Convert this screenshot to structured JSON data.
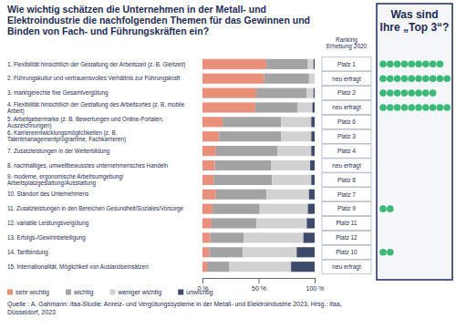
{
  "chart_data": {
    "type": "bar",
    "orientation": "horizontal",
    "stacked": true,
    "legend": "bottom",
    "grid": false,
    "title": "Wie wichtig schätzen die Unternehmen in der Metall- und Elektroindustrie die nachfolgenden Themen für das Gewinnen und Binden von Fach- und Führungskräften ein?",
    "categories": [
      "1. Flexibilität hinsichtlich der Gestaltung der Arbeitszeit (z. B. Gleitzeit)",
      "2. Führungskultur und vertrauensvolles Verhältnis zur Führungskraft",
      "3. marktgerechte fixe Gesamtvergütung",
      "4. Flexibilität hinsichtlich der Gestaltung des Arbeitsortes (z. B. mobile Arbeit)",
      "5. Arbeitgebermarke (z. B. Bewertungen und Online-Portalen, Auszeichnungen)",
      "6. Karriereentwicklungsmöglichkeiten (z. B. Talentmanagementprogramme, Fachkarrieren)",
      "7. Zusatzleistungen in der Weiterbildung",
      "8. nachhaltiges, umweltbewusstes unternehmerisches Handeln",
      "9. moderne, ergonomische Arbeitsumgebung/ Arbeitsplatzgestaltung/Ausstattung",
      "10. Standort des Unternehmens",
      "11. Zusatzleistungen in den Bereichen Gesundheit/Soziales/Vorsorge",
      "12. variable Leistungsvergütung",
      "13. Erfolgs-/Gewinnbeteiligung",
      "14. Tarifbindung",
      "15. Internationalität, Möglichkeit von Auslandseinsätzen"
    ],
    "series": [
      {
        "name": "sehr wichtig",
        "color": "#e8907a",
        "values": [
          57,
          55,
          48,
          47,
          18,
          15,
          12,
          11,
          10,
          12,
          9,
          8,
          7,
          6,
          4
        ]
      },
      {
        "name": "wichtig",
        "color": "#a3a3a3",
        "values": [
          37,
          40,
          45,
          38,
          52,
          55,
          55,
          50,
          52,
          45,
          42,
          40,
          30,
          30,
          20
        ]
      },
      {
        "name": "weniger wichtig",
        "color": "#d2d2d2",
        "values": [
          5,
          5,
          6,
          13,
          27,
          27,
          30,
          35,
          35,
          38,
          43,
          45,
          53,
          48,
          55
        ]
      },
      {
        "name": "unwichtig",
        "color": "#3d4a6b",
        "values": [
          1,
          0,
          1,
          2,
          3,
          3,
          3,
          4,
          3,
          5,
          6,
          7,
          10,
          16,
          21
        ]
      }
    ],
    "xlim": [
      0,
      100
    ],
    "xticks": [
      {
        "value": 0,
        "label": "0 %"
      },
      {
        "value": 50,
        "label": "50 %"
      },
      {
        "value": 100,
        "label": "100 %"
      }
    ],
    "ranking_header": "Ranking Erhebung 2020",
    "ranking_2020": [
      "Platz 1",
      "neu erfragt",
      "Platz 2",
      "neu erfragt",
      "Platz 6",
      "Platz 3",
      "Platz 4",
      "neu erfragt",
      "Platz 8",
      "Platz 7",
      "Platz 9",
      "Platz 11",
      "Platz 12",
      "Platz 10",
      "neu erfragt"
    ],
    "top3_title": "Was sind Ihre „Top 3“?",
    "top3_votes": [
      9,
      10,
      8,
      10,
      0,
      0,
      0,
      0,
      0,
      0,
      2,
      0,
      0,
      2,
      0
    ],
    "top3_color": "#3cb878",
    "source": "Quelle : A. Gahmann: ifaa-Studie: Anreiz- und Vergütungssysteme in der Metall- und Elektroindustrie 2023, Hrsg.: ifaa, Düsseldorf, 2023"
  }
}
